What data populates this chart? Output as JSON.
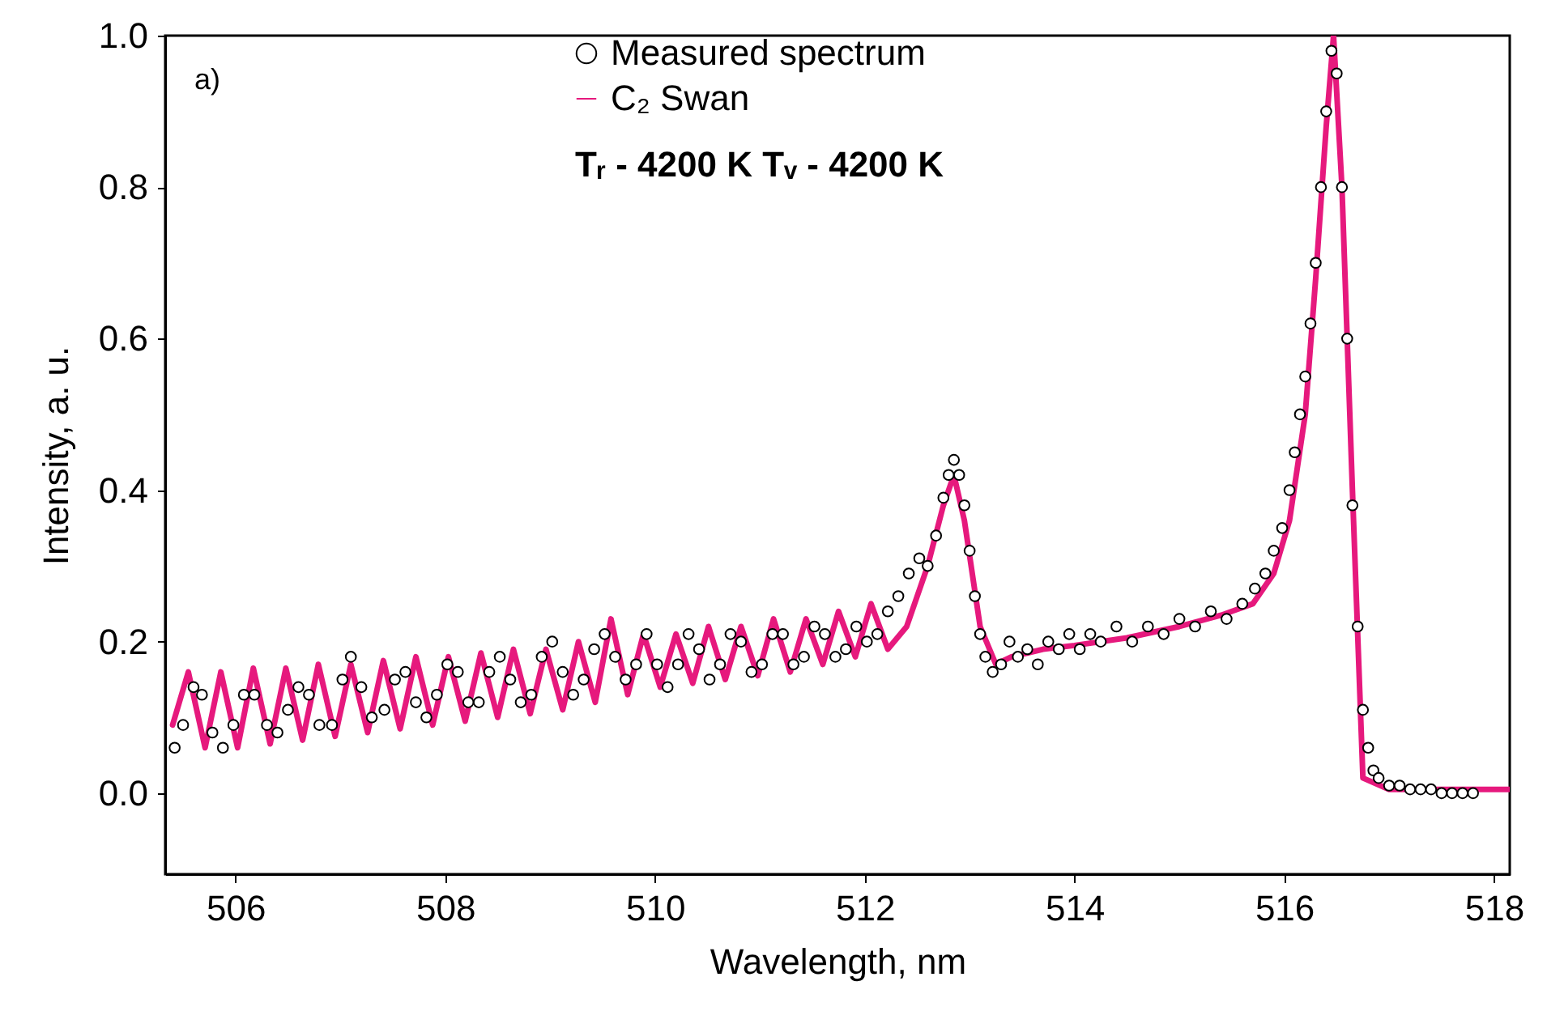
{
  "chart_data": {
    "type": "scatter",
    "xlabel": "Wavelength, nm",
    "ylabel": "Intensity, a. u.",
    "xlim": [
      505.33,
      518.15
    ],
    "ylim": [
      -0.107,
      1.0
    ],
    "xticks": [
      {
        "value": 506,
        "label": "506"
      },
      {
        "value": 508,
        "label": "508"
      },
      {
        "value": 510,
        "label": "510"
      },
      {
        "value": 512,
        "label": "512"
      },
      {
        "value": 514,
        "label": "514"
      },
      {
        "value": 516,
        "label": "516"
      },
      {
        "value": 518,
        "label": "518"
      }
    ],
    "yticks": [
      {
        "value": 0,
        "label": "0.0"
      },
      0.2,
      0.4,
      0.6,
      0.8,
      {
        "value": 1,
        "label": "1.0"
      }
    ],
    "legend": "top",
    "grid": false,
    "annotations": [
      "a)",
      "Tᵣ - 4200 K   Tᵥ - 4200 K"
    ],
    "series": [
      {
        "name": "Measured spectrum",
        "marker": "circle",
        "color": "#000000",
        "x": [
          505.42,
          505.5,
          505.6,
          505.68,
          505.78,
          505.88,
          505.98,
          506.08,
          506.18,
          506.3,
          506.4,
          506.5,
          506.6,
          506.7,
          506.8,
          506.92,
          507.02,
          507.1,
          507.2,
          507.3,
          507.42,
          507.52,
          507.62,
          507.72,
          507.82,
          507.92,
          508.02,
          508.12,
          508.22,
          508.32,
          508.42,
          508.52,
          508.62,
          508.72,
          508.82,
          508.92,
          509.02,
          509.12,
          509.22,
          509.32,
          509.42,
          509.52,
          509.62,
          509.72,
          509.82,
          509.92,
          510.02,
          510.12,
          510.22,
          510.32,
          510.42,
          510.52,
          510.62,
          510.72,
          510.82,
          510.92,
          511.02,
          511.12,
          511.22,
          511.32,
          511.42,
          511.52,
          511.62,
          511.72,
          511.82,
          511.92,
          512.02,
          512.12,
          512.22,
          512.32,
          512.42,
          512.52,
          512.6,
          512.68,
          512.75,
          512.8,
          512.85,
          512.9,
          512.95,
          513.0,
          513.05,
          513.1,
          513.15,
          513.22,
          513.3,
          513.38,
          513.46,
          513.55,
          513.65,
          513.75,
          513.85,
          513.95,
          514.05,
          514.15,
          514.25,
          514.4,
          514.55,
          514.7,
          514.85,
          515.0,
          515.15,
          515.3,
          515.45,
          515.6,
          515.72,
          515.82,
          515.9,
          515.98,
          516.05,
          516.1,
          516.15,
          516.2,
          516.25,
          516.3,
          516.35,
          516.4,
          516.45,
          516.5,
          516.55,
          516.6,
          516.65,
          516.7,
          516.75,
          516.8,
          516.85,
          516.9,
          517.0,
          517.1,
          517.2,
          517.3,
          517.4,
          517.5,
          517.6,
          517.7,
          517.8
        ],
        "values": [
          0.06,
          0.09,
          0.14,
          0.13,
          0.08,
          0.06,
          0.09,
          0.13,
          0.13,
          0.09,
          0.08,
          0.11,
          0.14,
          0.13,
          0.09,
          0.09,
          0.15,
          0.18,
          0.14,
          0.1,
          0.11,
          0.15,
          0.16,
          0.12,
          0.1,
          0.13,
          0.17,
          0.16,
          0.12,
          0.12,
          0.16,
          0.18,
          0.15,
          0.12,
          0.13,
          0.18,
          0.2,
          0.16,
          0.13,
          0.15,
          0.19,
          0.21,
          0.18,
          0.15,
          0.17,
          0.21,
          0.17,
          0.14,
          0.17,
          0.21,
          0.19,
          0.15,
          0.17,
          0.21,
          0.2,
          0.16,
          0.17,
          0.21,
          0.21,
          0.17,
          0.18,
          0.22,
          0.21,
          0.18,
          0.19,
          0.22,
          0.2,
          0.21,
          0.24,
          0.26,
          0.29,
          0.31,
          0.3,
          0.34,
          0.39,
          0.42,
          0.44,
          0.42,
          0.38,
          0.32,
          0.26,
          0.21,
          0.18,
          0.16,
          0.17,
          0.2,
          0.18,
          0.19,
          0.17,
          0.2,
          0.19,
          0.21,
          0.19,
          0.21,
          0.2,
          0.22,
          0.2,
          0.22,
          0.21,
          0.23,
          0.22,
          0.24,
          0.23,
          0.25,
          0.27,
          0.29,
          0.32,
          0.35,
          0.4,
          0.45,
          0.5,
          0.55,
          0.62,
          0.7,
          0.8,
          0.9,
          0.98,
          0.95,
          0.8,
          0.6,
          0.38,
          0.22,
          0.11,
          0.06,
          0.03,
          0.02,
          0.01,
          0.01,
          0.005,
          0.005,
          0.005,
          0,
          0,
          0,
          0
        ]
      },
      {
        "name": "C₂ Swan",
        "type": "line",
        "color": "#e6197d",
        "line_style": "solid",
        "x": [
          505.4,
          505.55,
          505.71,
          505.86,
          506.02,
          506.17,
          506.33,
          506.48,
          506.64,
          506.79,
          506.95,
          507.1,
          507.26,
          507.41,
          507.57,
          507.72,
          507.88,
          508.03,
          508.19,
          508.34,
          508.5,
          508.65,
          508.81,
          508.96,
          509.12,
          509.27,
          509.43,
          509.58,
          509.74,
          509.89,
          510.05,
          510.2,
          510.36,
          510.51,
          510.67,
          510.82,
          510.98,
          511.13,
          511.29,
          511.44,
          511.6,
          511.75,
          511.91,
          512.06,
          512.22,
          512.4,
          512.6,
          512.75,
          512.85,
          512.95,
          513.1,
          513.25,
          513.4,
          513.7,
          514.0,
          514.5,
          515.0,
          515.4,
          515.7,
          515.9,
          516.05,
          516.2,
          516.3,
          516.4,
          516.47,
          516.55,
          516.65,
          516.75,
          517.0,
          518.15
        ],
        "values": [
          0.09,
          0.16,
          0.06,
          0.16,
          0.06,
          0.165,
          0.065,
          0.165,
          0.07,
          0.17,
          0.075,
          0.17,
          0.08,
          0.175,
          0.085,
          0.18,
          0.09,
          0.18,
          0.095,
          0.185,
          0.1,
          0.19,
          0.105,
          0.19,
          0.11,
          0.2,
          0.12,
          0.23,
          0.13,
          0.21,
          0.14,
          0.21,
          0.145,
          0.22,
          0.15,
          0.22,
          0.155,
          0.23,
          0.16,
          0.23,
          0.17,
          0.24,
          0.18,
          0.25,
          0.19,
          0.22,
          0.3,
          0.38,
          0.42,
          0.36,
          0.22,
          0.17,
          0.18,
          0.19,
          0.195,
          0.205,
          0.22,
          0.235,
          0.25,
          0.29,
          0.36,
          0.5,
          0.68,
          0.88,
          1.0,
          0.8,
          0.4,
          0.02,
          0.005,
          0.005
        ]
      }
    ]
  }
}
